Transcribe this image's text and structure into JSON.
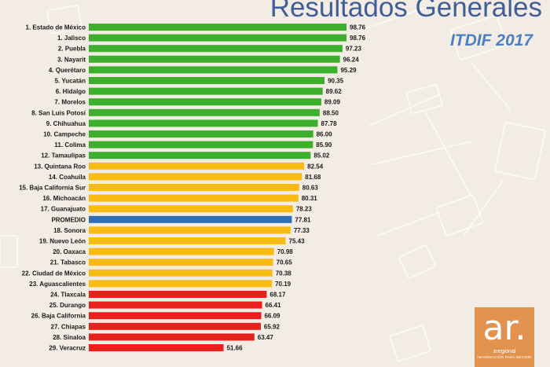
{
  "header": {
    "title": "Resultados Generales",
    "subtitle": "ITDIF 2017"
  },
  "colors": {
    "green": "#3cb02c",
    "yellow": "#f8bb12",
    "blue": "#2e6fb8",
    "red": "#e8211c"
  },
  "logo": {
    "mark": "ar.",
    "name": "aregional",
    "tagline": "INFORMACIÓN PARA DECIDIR"
  },
  "chart_data": {
    "type": "bar",
    "orientation": "horizontal",
    "title": "",
    "xlim": [
      0,
      100
    ],
    "grid": false,
    "categories": [
      "1. Estado de México",
      "1. Jalisco",
      "2. Puebla",
      "3. Nayarit",
      "4. Querétaro",
      "5. Yucatán",
      "6. Hidalgo",
      "7. Morelos",
      "8. San Luis Potosí",
      "9. Chihuahua",
      "10. Campeche",
      "11. Colima",
      "12. Tamaulipas",
      "13. Quintana Roo",
      "14. Coahuila",
      "15. Baja California Sur",
      "16. Michoacán",
      "17. Guanajuato",
      "PROMEDIO",
      "18. Sonora",
      "19. Nuevo León",
      "20. Oaxaca",
      "21. Tabasco",
      "22. Ciudad de México",
      "23. Aguascalientes",
      "24. Tlaxcala",
      "25. Durango",
      "26. Baja California",
      "27. Chiapas",
      "28. Sinaloa",
      "29. Veracruz"
    ],
    "values": [
      98.76,
      98.76,
      97.23,
      96.24,
      95.29,
      90.35,
      89.62,
      89.09,
      88.5,
      87.78,
      86.0,
      85.9,
      85.02,
      82.54,
      81.68,
      80.63,
      80.31,
      78.23,
      77.81,
      77.33,
      75.43,
      70.98,
      70.65,
      70.38,
      70.19,
      68.17,
      66.41,
      66.09,
      65.92,
      63.47,
      51.66
    ],
    "labels": [
      "98.76",
      "98.76",
      "97.23",
      "96.24",
      "95.29",
      "90.35",
      "89.62",
      "89.09",
      "88.50",
      "87.78",
      "86.00",
      "85.90",
      "85.02",
      "82.54",
      "81.68",
      "80.63",
      "80.31",
      "78.23",
      "77.81",
      "77.33",
      "75.43",
      "70.98",
      "70.65",
      "70.38",
      "70.19",
      "68.17",
      "66.41",
      "66.09",
      "65.92",
      "63.47",
      "51.66"
    ],
    "bar_colors": [
      "green",
      "green",
      "green",
      "green",
      "green",
      "green",
      "green",
      "green",
      "green",
      "green",
      "green",
      "green",
      "green",
      "yellow",
      "yellow",
      "yellow",
      "yellow",
      "yellow",
      "blue",
      "yellow",
      "yellow",
      "yellow",
      "yellow",
      "yellow",
      "yellow",
      "red",
      "red",
      "red",
      "red",
      "red",
      "red"
    ]
  }
}
